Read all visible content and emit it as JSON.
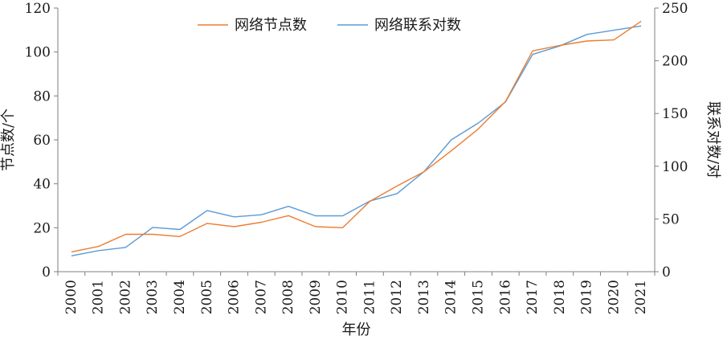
{
  "chart_data": {
    "type": "line",
    "x": [
      "2000",
      "2001",
      "2002",
      "2003",
      "2004",
      "2005",
      "2006",
      "2007",
      "2008",
      "2009",
      "2010",
      "2011",
      "2012",
      "2013",
      "2014",
      "2015",
      "2016",
      "2017",
      "2018",
      "2019",
      "2020",
      "2021"
    ],
    "series": [
      {
        "name": "网络节点数",
        "axis": "left",
        "color": "#ed7d31",
        "values": [
          9,
          11.5,
          17,
          17,
          16,
          22,
          20.5,
          22.5,
          25.5,
          20.5,
          20,
          32,
          39,
          45.5,
          55,
          65,
          77.5,
          100.5,
          103,
          105,
          105.5,
          114
        ]
      },
      {
        "name": "网络联系对数",
        "axis": "right",
        "color": "#5b9bd5",
        "values": [
          15,
          20,
          23,
          42,
          40,
          58,
          52,
          54,
          62,
          53,
          53,
          67,
          74,
          95,
          125,
          141,
          161,
          206,
          214,
          225,
          229,
          233
        ]
      }
    ],
    "xlabel": "年份",
    "ylabel_left": "节点数/个",
    "ylabel_right": "联系对数/对",
    "ylim_left": [
      0,
      120
    ],
    "yticks_left": [
      0,
      20,
      40,
      60,
      80,
      100,
      120
    ],
    "ylim_right": [
      0,
      250
    ],
    "yticks_right": [
      0,
      50,
      100,
      150,
      200,
      250
    ],
    "grid": false,
    "legend_position": "top-center"
  }
}
